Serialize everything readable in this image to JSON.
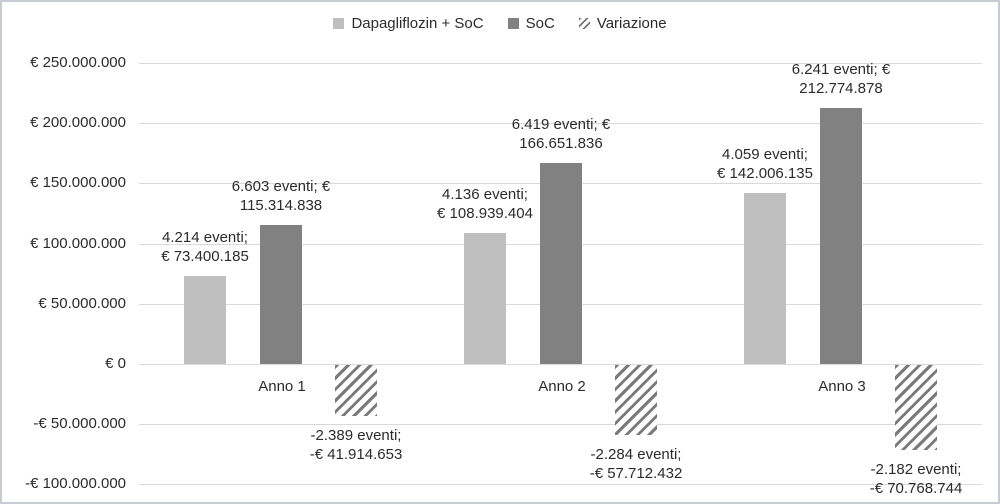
{
  "figure": {
    "background": "#ffffff",
    "border_color": "#c9cbd3",
    "text_color": "#2b2b2b",
    "gridline_color": "#d9d9d9"
  },
  "legend": {
    "position": "top",
    "items": [
      {
        "label": "Dapagliflozin + SoC",
        "swatch": "solid-light-gray"
      },
      {
        "label": "SoC",
        "swatch": "solid-dark-gray"
      },
      {
        "label": "Variazione",
        "swatch": "diagonal-hatch"
      }
    ]
  },
  "chart_data": {
    "type": "bar",
    "title": "",
    "xlabel": "",
    "ylabel": "",
    "grid": true,
    "legend_position": "top",
    "categories": [
      "Anno 1",
      "Anno 2",
      "Anno 3"
    ],
    "series": [
      {
        "name": "Dapagliflozin + SoC",
        "style": "solid",
        "color": "#bfbfbf",
        "values": [
          73400185,
          108939404,
          142006135
        ],
        "data_labels": [
          [
            "4.214 eventi;",
            "€ 73.400.185"
          ],
          [
            "4.136 eventi;",
            "€ 108.939.404"
          ],
          [
            "4.059 eventi;",
            "€ 142.006.135"
          ]
        ]
      },
      {
        "name": "SoC",
        "style": "solid",
        "color": "#818181",
        "values": [
          115314838,
          166651836,
          212774878
        ],
        "data_labels": [
          [
            "6.603 eventi; €",
            "115.314.838"
          ],
          [
            "6.419 eventi; €",
            "166.651.836"
          ],
          [
            "6.241 eventi; €",
            "212.774.878"
          ]
        ]
      },
      {
        "name": "Variazione",
        "style": "diagonal-hatch",
        "color": "#7a7a7a",
        "values": [
          -41914653,
          -57712432,
          -70768744
        ],
        "data_labels": [
          [
            "-2.389 eventi;",
            "-€ 41.914.653"
          ],
          [
            "-2.284 eventi;",
            "-€ 57.712.432"
          ],
          [
            "-2.182 eventi;",
            "-€ 70.768.744"
          ]
        ]
      }
    ],
    "y_axis": {
      "ylim": [
        -100000000,
        250000000
      ],
      "tick_step": 50000000,
      "ticks": [
        {
          "value": 250000000,
          "label": "€ 250.000.000"
        },
        {
          "value": 200000000,
          "label": "€ 200.000.000"
        },
        {
          "value": 150000000,
          "label": "€ 150.000.000"
        },
        {
          "value": 100000000,
          "label": "€ 100.000.000"
        },
        {
          "value": 50000000,
          "label": "€ 50.000.000"
        },
        {
          "value": 0,
          "label": "€ 0"
        },
        {
          "value": -50000000,
          "label": "-€ 50.000.000"
        },
        {
          "value": -100000000,
          "label": "-€ 100.000.000"
        }
      ]
    }
  }
}
